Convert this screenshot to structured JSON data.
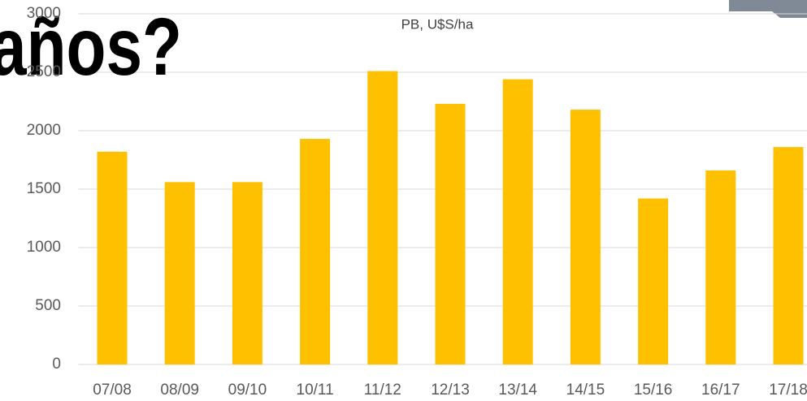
{
  "slide_title": "años?",
  "chart_data": {
    "type": "bar",
    "title": "PB, U$S/ha",
    "categories": [
      "07/08",
      "08/09",
      "09/10",
      "10/11",
      "11/12",
      "12/13",
      "13/14",
      "14/15",
      "15/16",
      "16/17",
      "17/18"
    ],
    "values": [
      1820,
      1560,
      1560,
      1930,
      2510,
      2230,
      2440,
      2180,
      1420,
      1660,
      1860
    ],
    "color": "#ffc000",
    "ylim": [
      0,
      3000
    ],
    "yticks": [
      0,
      500,
      1000,
      1500,
      2000,
      2500,
      3000
    ],
    "grid": true
  }
}
